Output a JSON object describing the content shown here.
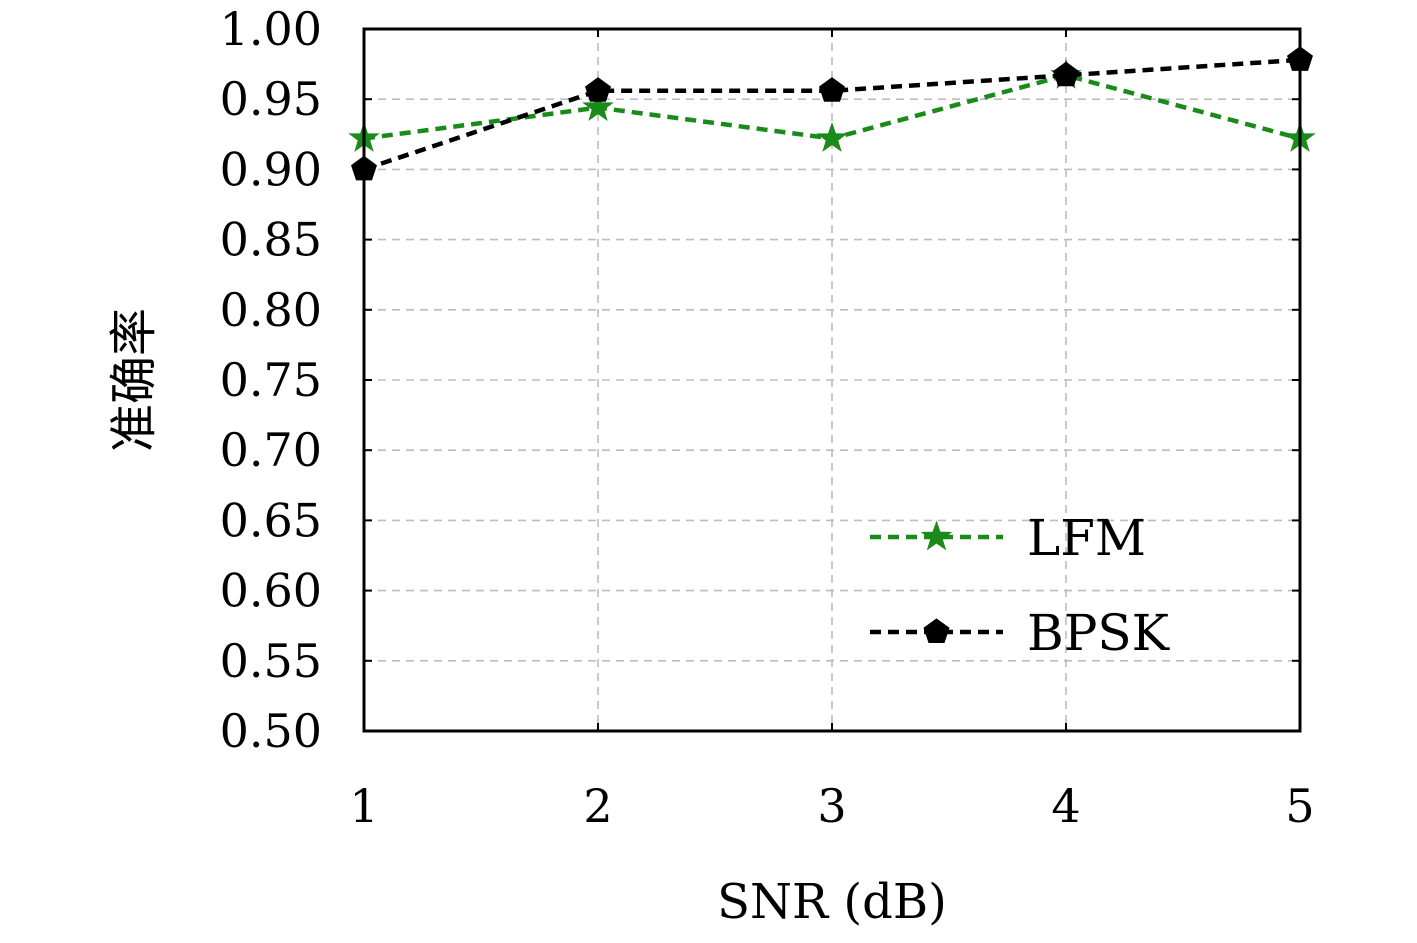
{
  "chart_data": {
    "type": "line",
    "x": [
      1,
      2,
      3,
      4,
      5
    ],
    "xticks": [
      "1",
      "2",
      "3",
      "4",
      "5"
    ],
    "yticks": [
      "0.50",
      "0.55",
      "0.60",
      "0.65",
      "0.70",
      "0.75",
      "0.80",
      "0.85",
      "0.90",
      "0.95",
      "1.00"
    ],
    "xlabel": "SNR (dB)",
    "ylabel": "准确率",
    "xlim": [
      1,
      5
    ],
    "ylim": [
      0.5,
      1.0
    ],
    "grid": true,
    "legend_position": "lower-right",
    "series": [
      {
        "name": "LFM",
        "values": [
          0.922,
          0.944,
          0.922,
          0.967,
          0.922
        ],
        "color": "#1a8a1a",
        "marker": "star",
        "linestyle": "dashed"
      },
      {
        "name": "BPSK",
        "values": [
          0.9,
          0.956,
          0.956,
          0.967,
          0.978
        ],
        "color": "#000000",
        "marker": "pentagon",
        "linestyle": "dashed"
      }
    ]
  }
}
